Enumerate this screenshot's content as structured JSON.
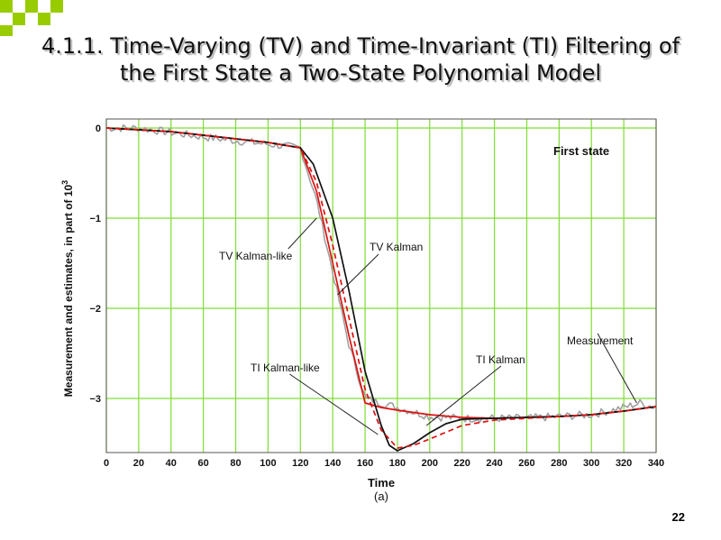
{
  "slide": {
    "title_line1": "4.1.1. Time-Varying (TV) and Time-Invariant (TI) Filtering of",
    "title_line2": "the First State a Two-State Polynomial Model",
    "page_number": "22",
    "accent_color": "#99cc00"
  },
  "chart_data": {
    "type": "line",
    "panel_label": "First state",
    "xlabel": "Time",
    "xlabel_sub": "(a)",
    "ylabel": "Measurement and estimates, in part of 10",
    "ylabel_exponent": "3",
    "xlim": [
      0,
      340
    ],
    "ylim": [
      -3.6,
      0.1
    ],
    "x_ticks": [
      0,
      20,
      40,
      60,
      80,
      100,
      120,
      140,
      160,
      180,
      200,
      220,
      240,
      260,
      280,
      300,
      320,
      340
    ],
    "y_ticks": [
      0,
      -1,
      -2,
      -3
    ],
    "y_tick_labels": [
      "0",
      "−1",
      "−2",
      "−3"
    ],
    "grid": true,
    "series": [
      {
        "name": "Measurement",
        "color": "#a0a0a0",
        "style": "noisy",
        "x": [
          0,
          20,
          40,
          60,
          80,
          100,
          120,
          130,
          140,
          150,
          160,
          170,
          180,
          200,
          220,
          240,
          260,
          280,
          300,
          320,
          330,
          340
        ],
        "y": [
          0.0,
          0.0,
          -0.05,
          -0.1,
          -0.14,
          -0.18,
          -0.22,
          -0.8,
          -1.6,
          -2.4,
          -3.0,
          -3.05,
          -3.1,
          -3.2,
          -3.22,
          -3.22,
          -3.22,
          -3.2,
          -3.18,
          -3.1,
          -3.05,
          -3.1
        ]
      },
      {
        "name": "TV Kalman-like",
        "color": "#dd1111",
        "style": "solid",
        "x": [
          0,
          40,
          80,
          100,
          120,
          130,
          140,
          150,
          160,
          170,
          180,
          200,
          220,
          240,
          260,
          280,
          300,
          320,
          340
        ],
        "y": [
          0.0,
          -0.04,
          -0.12,
          -0.16,
          -0.22,
          -0.7,
          -1.5,
          -2.3,
          -3.05,
          -3.1,
          -3.13,
          -3.18,
          -3.21,
          -3.22,
          -3.21,
          -3.2,
          -3.18,
          -3.14,
          -3.09
        ]
      },
      {
        "name": "TV Kalman",
        "color": "#111111",
        "style": "solid",
        "x": [
          0,
          40,
          80,
          100,
          120,
          128,
          140,
          150,
          160,
          170,
          175,
          180,
          190,
          200,
          210,
          220,
          240,
          260,
          280,
          300,
          320,
          340
        ],
        "y": [
          0.0,
          -0.04,
          -0.12,
          -0.16,
          -0.22,
          -0.4,
          -1.0,
          -1.8,
          -2.7,
          -3.3,
          -3.52,
          -3.58,
          -3.5,
          -3.38,
          -3.28,
          -3.23,
          -3.22,
          -3.21,
          -3.2,
          -3.18,
          -3.14,
          -3.09
        ]
      },
      {
        "name": "TI Kalman-like",
        "color": "#dd1111",
        "style": "dashed",
        "x": [
          0,
          40,
          80,
          100,
          120,
          130,
          140,
          150,
          160,
          170,
          180,
          190,
          200,
          220,
          240,
          260,
          280,
          300,
          320,
          340
        ],
        "y": [
          0.0,
          -0.04,
          -0.12,
          -0.16,
          -0.22,
          -0.6,
          -1.3,
          -2.1,
          -2.9,
          -3.35,
          -3.55,
          -3.52,
          -3.45,
          -3.3,
          -3.24,
          -3.22,
          -3.2,
          -3.18,
          -3.14,
          -3.09
        ]
      },
      {
        "name": "TI Kalman",
        "color": "#111111",
        "style": "solid",
        "hidden_overlap": true,
        "x": [],
        "y": []
      }
    ],
    "annotations": [
      {
        "text": "TV Kalman-like",
        "target_x": 130,
        "target_y": -1.0
      },
      {
        "text": "TV Kalman",
        "target_x": 143,
        "target_y": -1.85
      },
      {
        "text": "TI Kalman-like",
        "target_x": 168,
        "target_y": -3.4
      },
      {
        "text": "TI Kalman",
        "target_x": 198,
        "target_y": -3.3
      },
      {
        "text": "Measurement",
        "target_x": 328,
        "target_y": -3.05
      }
    ]
  }
}
